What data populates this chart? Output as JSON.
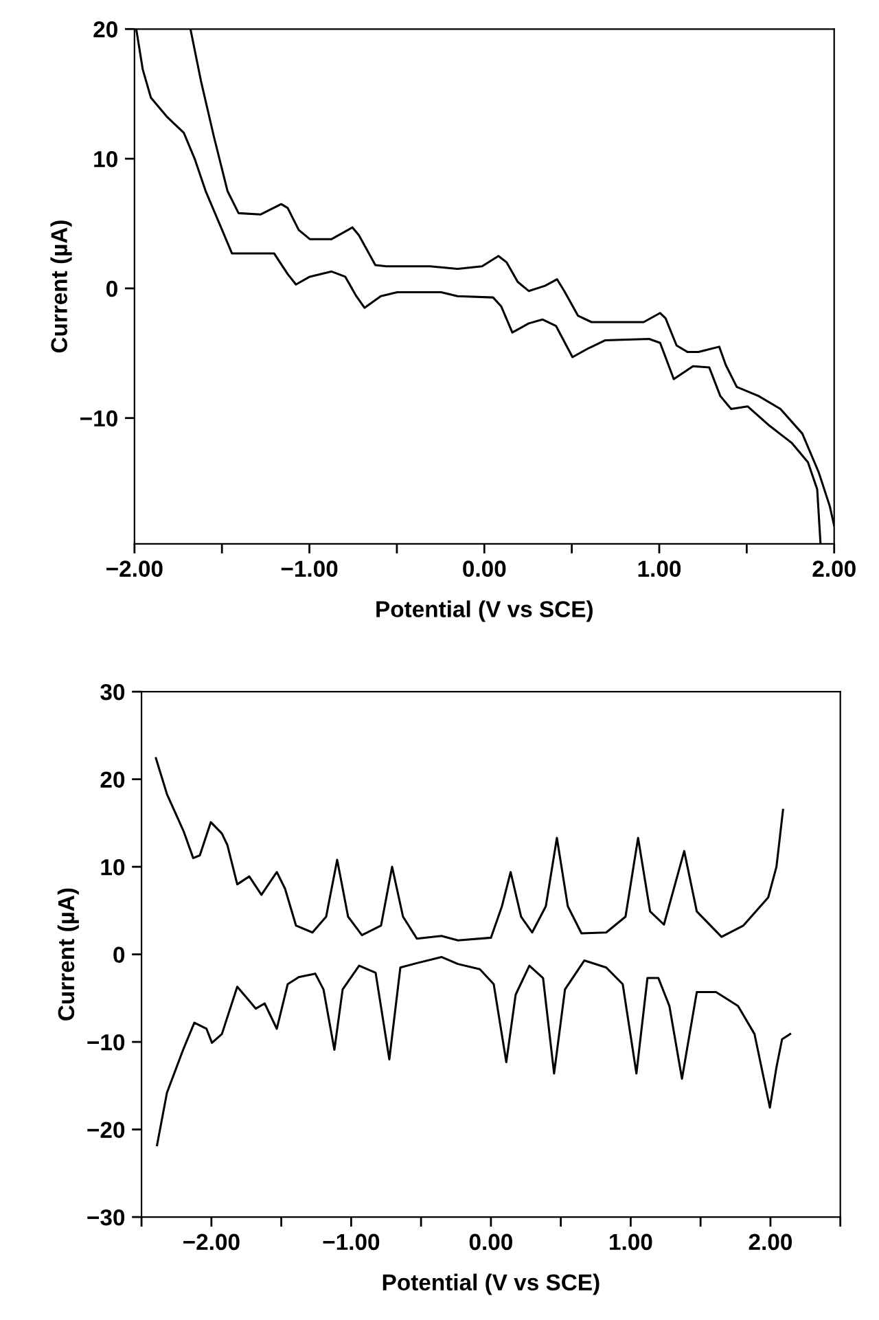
{
  "chart_data": [
    {
      "type": "line",
      "xlabel": "Potential (V vs SCE)",
      "ylabel": "Current (µA)",
      "xlim": [
        -2,
        2
      ],
      "ylim": [
        -19.7,
        20
      ],
      "xticks": [
        {
          "value": -2,
          "label": "−2.00"
        },
        {
          "value": -1.5,
          "label": null
        },
        {
          "value": -1,
          "label": "−1.00"
        },
        {
          "value": -0.5,
          "label": null
        },
        {
          "value": 0,
          "label": "0.00"
        },
        {
          "value": 0.5,
          "label": null
        },
        {
          "value": 1,
          "label": "1.00"
        },
        {
          "value": 1.5,
          "label": null
        },
        {
          "value": 2,
          "label": "2.00"
        }
      ],
      "yticks": [
        {
          "value": -10,
          "label": "−10"
        },
        0,
        10,
        20
      ],
      "grid": false,
      "line_style": "solid",
      "marker": "none",
      "series": [
        {
          "color": "#000000",
          "x": [
            -1.68,
            -1.62,
            -1.546,
            -1.468,
            -1.405,
            -1.28,
            -1.161,
            -1.124,
            -1.061,
            -0.998,
            -0.873,
            -0.754,
            -0.717,
            -0.623,
            -0.56,
            -0.31,
            -0.153,
            -0.013,
            0.081,
            0.128,
            0.191,
            0.254,
            0.347,
            0.416,
            0.457,
            0.535,
            0.613,
            0.911,
            1.005,
            1.036,
            1.099,
            1.161,
            1.224,
            1.343,
            1.38,
            1.443,
            1.568,
            1.693,
            1.818,
            1.912,
            1.975,
            2.0
          ],
          "values": [
            20,
            16.0,
            11.7,
            7.5,
            5.8,
            5.7,
            6.5,
            6.2,
            4.5,
            3.8,
            3.8,
            4.7,
            4.1,
            1.8,
            1.7,
            1.7,
            1.5,
            1.7,
            2.5,
            2.0,
            0.5,
            -0.2,
            0.2,
            0.7,
            -0.2,
            -2.1,
            -2.6,
            -2.6,
            -1.9,
            -2.3,
            -4.4,
            -4.9,
            -4.9,
            -4.5,
            -5.9,
            -7.6,
            -8.3,
            -9.3,
            -11.2,
            -14.2,
            -16.8,
            -18.3
          ]
        },
        {
          "color": "#000000",
          "x": [
            -1.99,
            -1.953,
            -1.906,
            -1.812,
            -1.718,
            -1.656,
            -1.593,
            -1.499,
            -1.443,
            -1.202,
            -1.124,
            -1.077,
            -0.998,
            -0.873,
            -0.795,
            -0.732,
            -0.685,
            -0.592,
            -0.498,
            -0.247,
            -0.153,
            0.05,
            0.097,
            0.16,
            0.254,
            0.332,
            0.41,
            0.504,
            0.598,
            0.692,
            0.942,
            1.005,
            1.083,
            1.193,
            1.286,
            1.349,
            1.411,
            1.505,
            1.631,
            1.756,
            1.85,
            1.903,
            1.922
          ],
          "values": [
            20,
            16.9,
            14.7,
            13.2,
            12.0,
            10.0,
            7.5,
            4.5,
            2.7,
            2.7,
            1.1,
            0.3,
            0.9,
            1.3,
            0.9,
            -0.6,
            -1.5,
            -0.6,
            -0.3,
            -0.3,
            -0.6,
            -0.7,
            -1.4,
            -3.4,
            -2.7,
            -2.4,
            -2.9,
            -5.3,
            -4.6,
            -4.0,
            -3.9,
            -4.2,
            -7.0,
            -6.0,
            -6.1,
            -8.3,
            -9.3,
            -9.1,
            -10.6,
            -11.9,
            -13.4,
            -15.5,
            -19.7
          ]
        }
      ]
    },
    {
      "type": "line",
      "xlabel": "Potential (V vs SCE)",
      "ylabel": "Current (µA)",
      "xlim": [
        -2.5,
        2.5
      ],
      "ylim": [
        -30,
        30
      ],
      "xticks": [
        {
          "value": -2.5,
          "label": null
        },
        {
          "value": -2,
          "label": "−2.00"
        },
        {
          "value": -1.5,
          "label": null
        },
        {
          "value": -1,
          "label": "−1.00"
        },
        {
          "value": -0.5,
          "label": null
        },
        {
          "value": 0,
          "label": "0.00"
        },
        {
          "value": 0.5,
          "label": null
        },
        {
          "value": 1,
          "label": "1.00"
        },
        {
          "value": 1.5,
          "label": null
        },
        {
          "value": 2,
          "label": "2.00"
        },
        {
          "value": 2.5,
          "label": null
        }
      ],
      "yticks": [
        {
          "value": -30,
          "label": "−30"
        },
        {
          "value": -20,
          "label": "−20"
        },
        {
          "value": -10,
          "label": "−10"
        },
        0,
        10,
        20,
        30
      ],
      "grid": false,
      "line_style": "solid",
      "marker": "none",
      "series": [
        {
          "color": "#000000",
          "x": [
            -2.397,
            -2.318,
            -2.2,
            -2.13,
            -2.083,
            -2.004,
            -1.925,
            -1.886,
            -1.815,
            -1.729,
            -1.642,
            -1.532,
            -1.473,
            -1.395,
            -1.277,
            -1.179,
            -1.1,
            -1.022,
            -0.923,
            -0.786,
            -0.707,
            -0.629,
            -0.53,
            -0.354,
            -0.236,
            0.0,
            0.079,
            0.141,
            0.216,
            0.295,
            0.393,
            0.472,
            0.55,
            0.648,
            0.825,
            0.963,
            1.053,
            1.139,
            1.238,
            1.383,
            1.473,
            1.65,
            1.807,
            1.984,
            2.043,
            2.09
          ],
          "values": [
            22.4,
            18.3,
            14.1,
            11.0,
            11.3,
            15.1,
            13.8,
            12.5,
            8.0,
            8.9,
            6.8,
            9.4,
            7.5,
            3.3,
            2.5,
            4.3,
            10.8,
            4.3,
            2.2,
            3.3,
            10.0,
            4.3,
            1.8,
            2.1,
            1.6,
            1.9,
            5.5,
            9.4,
            4.3,
            2.5,
            5.5,
            13.3,
            5.5,
            2.4,
            2.5,
            4.3,
            13.3,
            4.9,
            3.4,
            11.8,
            4.9,
            2.0,
            3.3,
            6.5,
            10.0,
            16.5
          ]
        },
        {
          "color": "#000000",
          "x": [
            -2.389,
            -2.318,
            -2.2,
            -2.122,
            -2.035,
            -1.996,
            -1.925,
            -1.815,
            -1.729,
            -1.682,
            -1.619,
            -1.532,
            -1.454,
            -1.375,
            -1.257,
            -1.198,
            -1.12,
            -1.061,
            -0.943,
            -0.825,
            -0.727,
            -0.648,
            -0.53,
            -0.354,
            -0.236,
            -0.079,
            0.02,
            0.11,
            0.177,
            0.275,
            0.373,
            0.452,
            0.53,
            0.668,
            0.825,
            0.943,
            1.041,
            1.12,
            1.198,
            1.277,
            1.367,
            1.473,
            1.611,
            1.768,
            1.886,
            1.996,
            2.043,
            2.083,
            2.141
          ],
          "values": [
            -21.8,
            -15.8,
            -10.8,
            -7.8,
            -8.5,
            -10.1,
            -9.1,
            -3.7,
            -5.3,
            -6.2,
            -5.6,
            -8.5,
            -3.4,
            -2.6,
            -2.2,
            -4.0,
            -10.9,
            -4.0,
            -1.3,
            -2.1,
            -12.0,
            -1.5,
            -1.0,
            -0.3,
            -1.1,
            -1.7,
            -3.4,
            -12.3,
            -4.6,
            -1.3,
            -2.7,
            -13.6,
            -4.0,
            -0.7,
            -1.5,
            -3.4,
            -13.6,
            -2.7,
            -2.7,
            -5.9,
            -14.2,
            -4.3,
            -4.3,
            -5.9,
            -9.1,
            -17.5,
            -12.9,
            -9.7,
            -9.1
          ]
        }
      ]
    }
  ]
}
